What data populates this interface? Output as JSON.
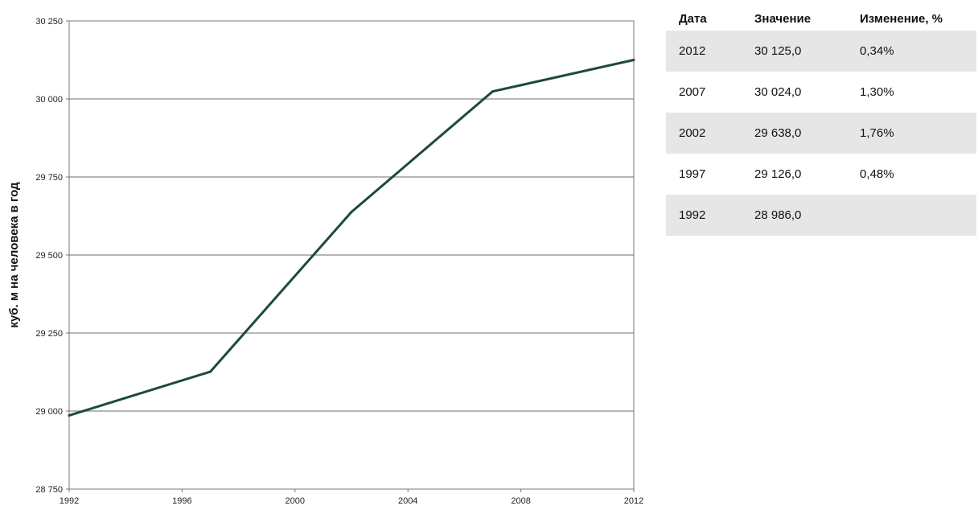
{
  "chart_data": {
    "type": "line",
    "title": "",
    "xlabel": "",
    "ylabel": "куб. м на человека в год",
    "x": [
      1992,
      1997,
      2002,
      2007,
      2012
    ],
    "series": [
      {
        "values": [
          28986,
          29126,
          29638,
          30024,
          30125
        ],
        "color": "#1f4a36"
      }
    ],
    "xlim": [
      1992,
      2012
    ],
    "ylim": [
      28750,
      30250
    ],
    "x_ticks": [
      1992,
      1996,
      2000,
      2004,
      2008,
      2012
    ],
    "x_tick_labels": [
      "1992",
      "1996",
      "2000",
      "2004",
      "2008",
      "2012"
    ],
    "y_ticks": [
      28750,
      29000,
      29250,
      29500,
      29750,
      30000,
      30250
    ],
    "y_tick_labels": [
      "28 750",
      "29 000",
      "29 250",
      "29 500",
      "29 750",
      "30 000",
      "30 250"
    ],
    "grid": true,
    "legend": "none"
  },
  "table": {
    "headers": [
      "Дата",
      "Значение",
      "Изменение, %"
    ],
    "rows": [
      [
        "2012",
        "30 125,0",
        "0,34%"
      ],
      [
        "2007",
        "30 024,0",
        "1,30%"
      ],
      [
        "2002",
        "29 638,0",
        "1,76%"
      ],
      [
        "1997",
        "29 126,0",
        "0,48%"
      ],
      [
        "1992",
        "28 986,0",
        ""
      ]
    ]
  }
}
